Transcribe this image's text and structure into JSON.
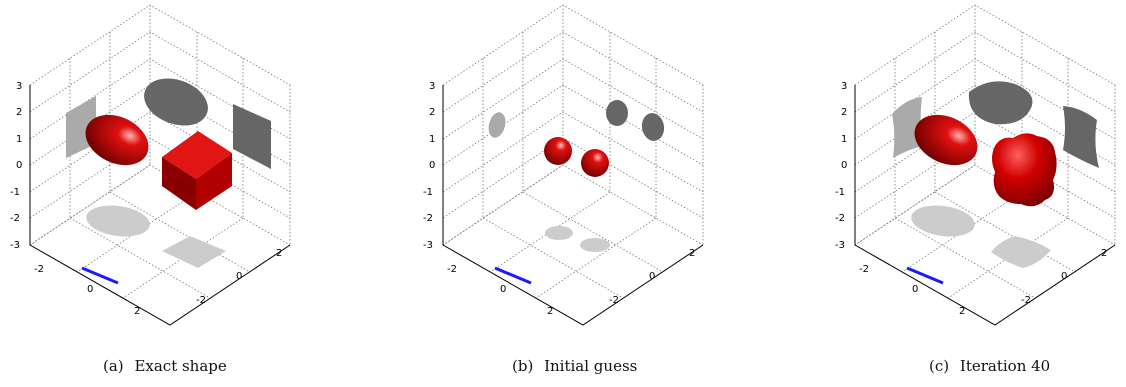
{
  "figure": {
    "panels": [
      {
        "label": "(a)",
        "caption": "Exact shape"
      },
      {
        "label": "(b)",
        "caption": "Initial guess"
      },
      {
        "label": "(c)",
        "caption": "Iteration 40"
      }
    ],
    "z_ticks": [
      "3",
      "2",
      "1",
      "0",
      "-1",
      "-2",
      "-3"
    ],
    "x_ticks": [
      "-2",
      "0",
      "2"
    ],
    "y_ticks": [
      "2",
      "0",
      "-2"
    ]
  },
  "colors": {
    "object": "#cc0000",
    "projection_dark": "#666666",
    "projection_light": "#c8c8c8",
    "axis_highlight": "#1a1aff",
    "grid": "#777777"
  }
}
